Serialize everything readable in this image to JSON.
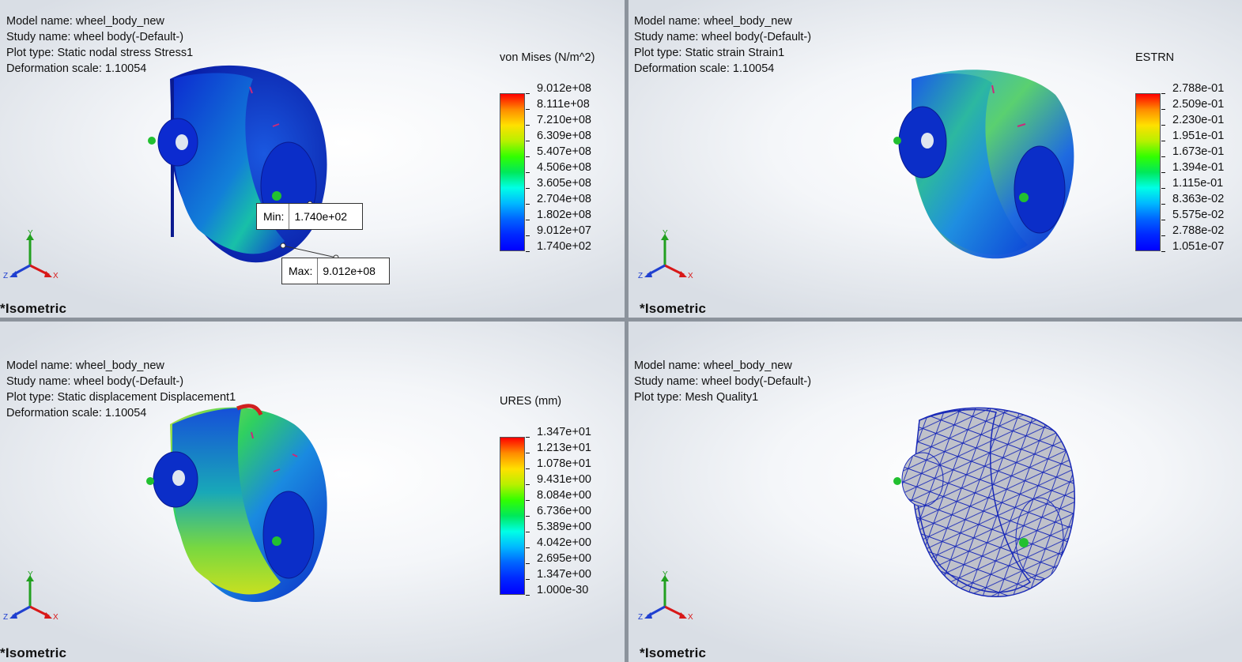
{
  "panels": {
    "stress": {
      "model_name": "Model name: wheel_body_new",
      "study_name": "Study name: wheel body(-Default-)",
      "plot_type": "Plot type: Static nodal stress Stress1",
      "deformation": "Deformation scale: 1.10054",
      "view": "*Isometric",
      "legend_title": "von Mises (N/m^2)",
      "legend_values": [
        "9.012e+08",
        "8.111e+08",
        "7.210e+08",
        "6.309e+08",
        "5.407e+08",
        "4.506e+08",
        "3.605e+08",
        "2.704e+08",
        "1.802e+08",
        "9.012e+07",
        "1.740e+02"
      ],
      "min_label": "Min:",
      "min_value": "1.740e+02",
      "max_label": "Max:",
      "max_value": "9.012e+08"
    },
    "strain": {
      "model_name": "Model name: wheel_body_new",
      "study_name": "Study name: wheel body(-Default-)",
      "plot_type": "Plot type: Static strain Strain1",
      "deformation": "Deformation scale: 1.10054",
      "view": "*Isometric",
      "legend_title": "ESTRN",
      "legend_values": [
        "2.788e-01",
        "2.509e-01",
        "2.230e-01",
        "1.951e-01",
        "1.673e-01",
        "1.394e-01",
        "1.115e-01",
        "8.363e-02",
        "5.575e-02",
        "2.788e-02",
        "1.051e-07"
      ]
    },
    "displacement": {
      "model_name": "Model name: wheel_body_new",
      "study_name": "Study name: wheel body(-Default-)",
      "plot_type": "Plot type: Static displacement Displacement1",
      "deformation": "Deformation scale: 1.10054",
      "view": "*Isometric",
      "legend_title": "URES (mm)",
      "legend_values": [
        "1.347e+01",
        "1.213e+01",
        "1.078e+01",
        "9.431e+00",
        "8.084e+00",
        "6.736e+00",
        "5.389e+00",
        "4.042e+00",
        "2.695e+00",
        "1.347e+00",
        "1.000e-30"
      ]
    },
    "mesh": {
      "model_name": "Model name: wheel_body_new",
      "study_name": "Study name: wheel body(-Default-)",
      "plot_type": "Plot type: Mesh Quality1",
      "view": "*Isometric"
    }
  },
  "triad": {
    "x": "X",
    "y": "Y",
    "z": "Z"
  },
  "colors": {
    "red": "#ff0000",
    "yellow": "#ffe000",
    "green": "#32ff00",
    "cyan": "#00ffe6",
    "blue": "#0000ff",
    "mesh_gray": "#bdbdc4"
  }
}
